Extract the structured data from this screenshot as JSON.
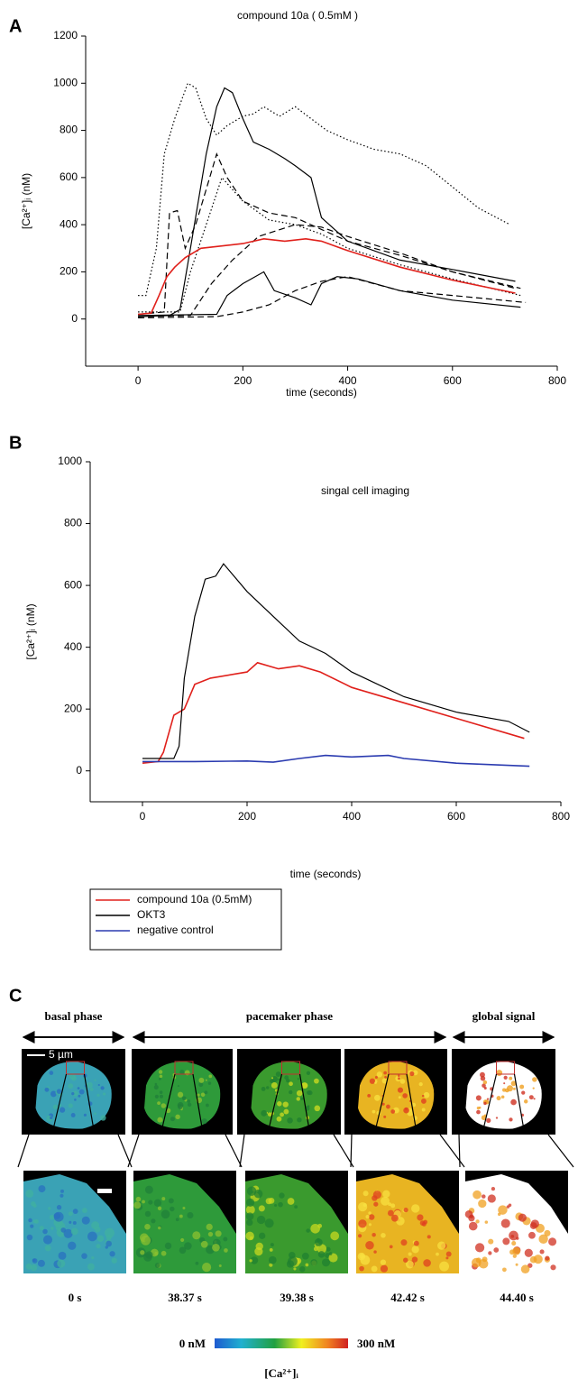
{
  "panel_labels": [
    "A",
    "B",
    "C"
  ],
  "chart_data": [
    {
      "type": "line",
      "title": "compound 10a ( 0.5mM )",
      "x_label": "time (seconds)",
      "y_label": "[Ca²⁺]ᵢ (nM)",
      "xlim": [
        -100,
        800
      ],
      "xticks": [
        0,
        200,
        400,
        600,
        800
      ],
      "ylim": [
        -200,
        1200
      ],
      "yticks": [
        0,
        200,
        400,
        600,
        800,
        1000,
        1200
      ],
      "series": [
        {
          "color": "#000000",
          "dash": "dotted",
          "x": [
            0,
            15,
            35,
            50,
            70,
            95,
            110,
            130,
            150,
            170,
            200,
            220,
            240,
            270,
            300,
            330,
            360,
            400,
            450,
            500,
            550,
            600,
            650,
            710
          ],
          "values": [
            100,
            100,
            300,
            700,
            850,
            1000,
            980,
            850,
            780,
            820,
            860,
            870,
            900,
            860,
            900,
            850,
            800,
            760,
            720,
            700,
            650,
            560,
            470,
            400
          ]
        },
        {
          "color": "#000000",
          "dash": "solid",
          "x": [
            0,
            60,
            80,
            100,
            130,
            150,
            165,
            180,
            200,
            220,
            250,
            280,
            300,
            330,
            350,
            400,
            500,
            600,
            720
          ],
          "values": [
            10,
            15,
            40,
            300,
            700,
            900,
            980,
            960,
            850,
            750,
            720,
            680,
            650,
            600,
            430,
            330,
            250,
            210,
            160
          ]
        },
        {
          "color": "#000000",
          "dash": "dashed",
          "x": [
            0,
            50,
            60,
            75,
            90,
            110,
            130,
            150,
            170,
            200,
            250,
            300,
            350,
            400,
            500,
            600,
            720
          ],
          "values": [
            20,
            30,
            450,
            460,
            300,
            400,
            550,
            700,
            600,
            500,
            450,
            430,
            380,
            330,
            270,
            200,
            130
          ]
        },
        {
          "color": "#000000",
          "dash": "dotted",
          "x": [
            0,
            80,
            100,
            130,
            160,
            200,
            250,
            300,
            350,
            400,
            500,
            600,
            730
          ],
          "values": [
            30,
            30,
            200,
            400,
            600,
            500,
            420,
            400,
            360,
            300,
            230,
            170,
            100
          ]
        },
        {
          "color": "#000000",
          "dash": "dashed",
          "x": [
            0,
            100,
            140,
            180,
            230,
            300,
            350,
            400,
            500,
            600,
            730
          ],
          "values": [
            10,
            15,
            150,
            250,
            350,
            400,
            390,
            350,
            280,
            200,
            130
          ]
        },
        {
          "color": "#000000",
          "dash": "solid",
          "x": [
            0,
            150,
            170,
            200,
            240,
            260,
            300,
            330,
            350,
            380,
            420,
            500,
            600,
            730
          ],
          "values": [
            15,
            20,
            100,
            150,
            200,
            120,
            90,
            60,
            150,
            180,
            170,
            120,
            80,
            50
          ]
        },
        {
          "color": "#000000",
          "dash": "dashed",
          "x": [
            0,
            150,
            200,
            250,
            300,
            350,
            400,
            450,
            500,
            600,
            740
          ],
          "values": [
            5,
            10,
            30,
            60,
            120,
            160,
            180,
            150,
            120,
            100,
            70
          ]
        },
        {
          "color": "#e0201b",
          "dash": "solid",
          "x": [
            0,
            25,
            40,
            55,
            70,
            90,
            120,
            160,
            200,
            240,
            280,
            320,
            350,
            400,
            500,
            600,
            720
          ],
          "values": [
            20,
            25,
            100,
            180,
            220,
            260,
            300,
            310,
            320,
            340,
            330,
            340,
            330,
            290,
            220,
            165,
            110
          ]
        }
      ]
    },
    {
      "type": "line",
      "title": "singal cell imaging",
      "x_label": "time (seconds)",
      "y_label": "[Ca²⁺]ᵢ (nM)",
      "xlim": [
        -100,
        800
      ],
      "xticks": [
        0,
        200,
        400,
        600,
        800
      ],
      "ylim": [
        -100,
        1000
      ],
      "yticks": [
        0,
        200,
        400,
        600,
        800,
        1000
      ],
      "legend": "below",
      "series": [
        {
          "name": "compound 10a (0.5mM)",
          "color": "#e0201b",
          "dash": "solid",
          "x": [
            0,
            30,
            40,
            60,
            80,
            100,
            130,
            200,
            220,
            260,
            300,
            340,
            400,
            500,
            600,
            730
          ],
          "values": [
            25,
            30,
            60,
            180,
            200,
            280,
            300,
            320,
            350,
            330,
            340,
            320,
            270,
            220,
            170,
            105
          ]
        },
        {
          "name": "OKT3",
          "color": "#000000",
          "dash": "solid",
          "x": [
            0,
            60,
            70,
            80,
            100,
            120,
            140,
            155,
            170,
            200,
            250,
            300,
            350,
            400,
            500,
            600,
            700,
            740
          ],
          "values": [
            40,
            40,
            80,
            300,
            500,
            620,
            630,
            670,
            640,
            580,
            500,
            420,
            380,
            320,
            240,
            190,
            160,
            125
          ]
        },
        {
          "name": "negative control",
          "color": "#2b3bb0",
          "dash": "solid",
          "x": [
            0,
            100,
            200,
            250,
            300,
            350,
            400,
            470,
            500,
            600,
            740
          ],
          "values": [
            30,
            30,
            32,
            28,
            40,
            50,
            45,
            50,
            40,
            25,
            15
          ]
        }
      ]
    }
  ],
  "panel_c": {
    "phases": [
      "basal phase",
      "pacemaker phase",
      "global signal"
    ],
    "scale_label": "5 µm",
    "times": [
      "0 s",
      "38.37 s",
      "39.38 s",
      "42.42 s",
      "44.40 s"
    ],
    "colorbar": {
      "min_label": "0 nM",
      "max_label": "300 nM",
      "label": "[Ca²⁺]ᵢ"
    }
  }
}
